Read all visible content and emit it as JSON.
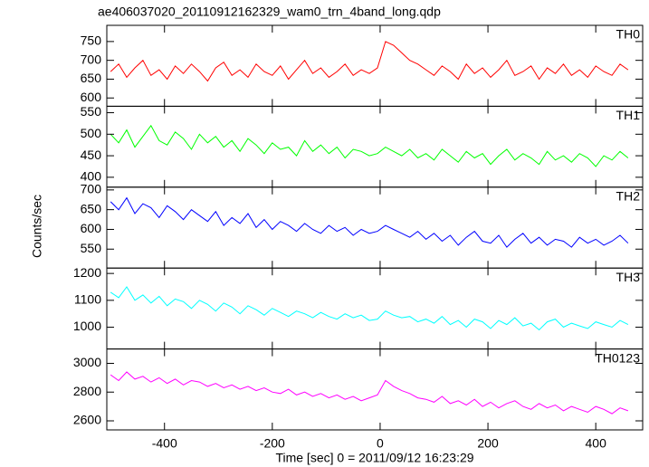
{
  "chart_data": {
    "type": "line",
    "title": "ae406037020_20110912162329_wam0_trn_4band_long.qdp",
    "xlabel": "Time [sec] 0 = 2011/09/12 16:23:29",
    "ylabel": "Counts/sec",
    "xlim": [
      -507,
      487
    ],
    "xticks": [
      -400,
      -200,
      0,
      200,
      400
    ],
    "x": [
      -500,
      -485,
      -470,
      -455,
      -440,
      -425,
      -410,
      -395,
      -380,
      -365,
      -350,
      -335,
      -320,
      -305,
      -290,
      -275,
      -260,
      -245,
      -230,
      -215,
      -200,
      -185,
      -170,
      -155,
      -140,
      -125,
      -110,
      -95,
      -80,
      -65,
      -50,
      -35,
      -20,
      -5,
      10,
      25,
      40,
      55,
      70,
      85,
      100,
      115,
      130,
      145,
      160,
      175,
      190,
      205,
      220,
      235,
      250,
      265,
      280,
      295,
      310,
      325,
      340,
      355,
      370,
      385,
      400,
      415,
      430,
      445,
      460
    ],
    "series": [
      {
        "name": "TH0",
        "color": "#ff0000",
        "ylim": [
          578,
          793
        ],
        "yticks": [
          600,
          650,
          700,
          750
        ],
        "values": [
          670,
          690,
          655,
          680,
          700,
          660,
          675,
          650,
          685,
          665,
          690,
          670,
          645,
          680,
          695,
          660,
          675,
          655,
          690,
          670,
          660,
          685,
          650,
          675,
          700,
          665,
          680,
          655,
          670,
          690,
          660,
          675,
          665,
          680,
          750,
          740,
          720,
          700,
          690,
          675,
          660,
          685,
          670,
          650,
          690,
          665,
          680,
          655,
          675,
          700,
          660,
          670,
          685,
          650,
          680,
          665,
          690,
          660,
          675,
          655,
          685,
          670,
          660,
          690,
          675
        ]
      },
      {
        "name": "TH1",
        "color": "#00ff00",
        "ylim": [
          377,
          565
        ],
        "yticks": [
          400,
          450,
          500,
          550
        ],
        "values": [
          500,
          480,
          510,
          470,
          495,
          520,
          485,
          475,
          505,
          490,
          465,
          500,
          480,
          495,
          470,
          485,
          460,
          490,
          475,
          455,
          480,
          465,
          470,
          450,
          485,
          460,
          475,
          455,
          470,
          445,
          465,
          460,
          450,
          455,
          470,
          460,
          450,
          465,
          445,
          455,
          440,
          465,
          450,
          435,
          460,
          445,
          455,
          430,
          450,
          465,
          440,
          455,
          445,
          430,
          460,
          440,
          450,
          435,
          455,
          445,
          425,
          450,
          440,
          460,
          445
        ]
      },
      {
        "name": "TH2",
        "color": "#0000ff",
        "ylim": [
          502,
          707
        ],
        "yticks": [
          550,
          600,
          650,
          700
        ],
        "values": [
          670,
          650,
          680,
          640,
          665,
          655,
          630,
          660,
          645,
          625,
          650,
          635,
          620,
          645,
          610,
          630,
          615,
          640,
          605,
          625,
          600,
          620,
          610,
          595,
          615,
          600,
          590,
          610,
          595,
          605,
          585,
          600,
          590,
          595,
          610,
          600,
          590,
          580,
          595,
          575,
          590,
          570,
          585,
          560,
          580,
          595,
          570,
          565,
          585,
          555,
          575,
          590,
          565,
          580,
          560,
          575,
          570,
          555,
          580,
          565,
          575,
          560,
          570,
          585,
          565
        ]
      },
      {
        "name": "TH3",
        "color": "#00ffff",
        "ylim": [
          919,
          1220
        ],
        "yticks": [
          1000,
          1100,
          1200
        ],
        "values": [
          1130,
          1110,
          1150,
          1100,
          1120,
          1090,
          1115,
          1080,
          1105,
          1095,
          1070,
          1100,
          1085,
          1060,
          1090,
          1075,
          1050,
          1080,
          1065,
          1045,
          1070,
          1055,
          1040,
          1060,
          1050,
          1035,
          1055,
          1040,
          1030,
          1050,
          1035,
          1045,
          1025,
          1030,
          1060,
          1045,
          1035,
          1040,
          1020,
          1030,
          1015,
          1040,
          1010,
          1025,
          1000,
          1030,
          1020,
          995,
          1025,
          1010,
          1035,
          1005,
          1015,
          990,
          1020,
          1030,
          1000,
          1015,
          1005,
          995,
          1020,
          1010,
          1000,
          1025,
          1010
        ]
      },
      {
        "name": "TH0123",
        "color": "#ff00ff",
        "ylim": [
          2537,
          3100
        ],
        "yticks": [
          2600,
          2800,
          3000
        ],
        "values": [
          2920,
          2880,
          2940,
          2890,
          2910,
          2870,
          2900,
          2860,
          2890,
          2850,
          2880,
          2870,
          2840,
          2860,
          2830,
          2850,
          2820,
          2840,
          2810,
          2830,
          2800,
          2790,
          2820,
          2780,
          2800,
          2770,
          2790,
          2760,
          2780,
          2750,
          2770,
          2740,
          2760,
          2780,
          2880,
          2840,
          2810,
          2790,
          2760,
          2750,
          2730,
          2770,
          2720,
          2740,
          2710,
          2750,
          2700,
          2730,
          2690,
          2720,
          2740,
          2700,
          2680,
          2720,
          2690,
          2710,
          2670,
          2700,
          2680,
          2660,
          2700,
          2680,
          2650,
          2690,
          2670
        ]
      }
    ]
  }
}
